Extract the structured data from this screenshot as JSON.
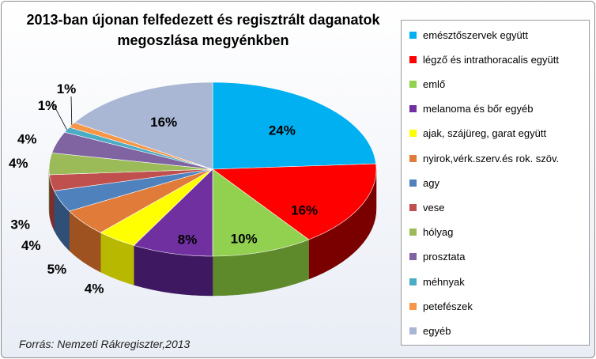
{
  "chart_data": {
    "type": "pie",
    "title_lines": [
      "2013-ban újonan felfedezett és regisztrált daganatok",
      "megoszlása megyénkben"
    ],
    "slices": [
      {
        "label": "emésztőszervek együtt",
        "value": 24,
        "value_label": "24%",
        "color": "#00b0f0",
        "dark": "#0084b8"
      },
      {
        "label": "légző és intrathoracalis együtt",
        "value": 16,
        "value_label": "16%",
        "color": "#ff0000",
        "dark": "#7a0000"
      },
      {
        "label": "emlő",
        "value": 10,
        "value_label": "10%",
        "color": "#92d050",
        "dark": "#5f8a2c"
      },
      {
        "label": "melanoma és bőr egyéb",
        "value": 8,
        "value_label": "8%",
        "color": "#7030a0",
        "dark": "#3e1860"
      },
      {
        "label": "ajak, szájüreg, garat együtt",
        "value": 4,
        "value_label": "4%",
        "color": "#ffff00",
        "dark": "#b8b800"
      },
      {
        "label": "nyirok,vérk.szerv.és rok. szöv.",
        "value": 5,
        "value_label": "5%",
        "color": "#e07b39",
        "dark": "#9e5220"
      },
      {
        "label": "agy",
        "value": 4,
        "value_label": "4%",
        "color": "#4f81bd",
        "dark": "#2f4f77"
      },
      {
        "label": "vese",
        "value": 3,
        "value_label": "3%",
        "color": "#c0504d",
        "dark": "#7e2f2d"
      },
      {
        "label": "hólyag",
        "value": 4,
        "value_label": "4%",
        "color": "#9bbb59",
        "dark": "#647a36"
      },
      {
        "label": "prosztata",
        "value": 4,
        "value_label": "4%",
        "color": "#8064a2",
        "dark": "#4f3d66"
      },
      {
        "label": "méhnyak",
        "value": 1,
        "value_label": "1%",
        "color": "#4bacc6",
        "dark": "#2d7080"
      },
      {
        "label": "petefészek",
        "value": 1,
        "value_label": "1%",
        "color": "#f79646",
        "dark": "#b5651f"
      },
      {
        "label": "egyéb",
        "value": 16,
        "value_label": "16%",
        "color": "#a9b6d4",
        "dark": "#6e7a96"
      }
    ],
    "legend_position": "right"
  },
  "source_text": "Forrás: Nemzeti Rákregiszter,2013"
}
